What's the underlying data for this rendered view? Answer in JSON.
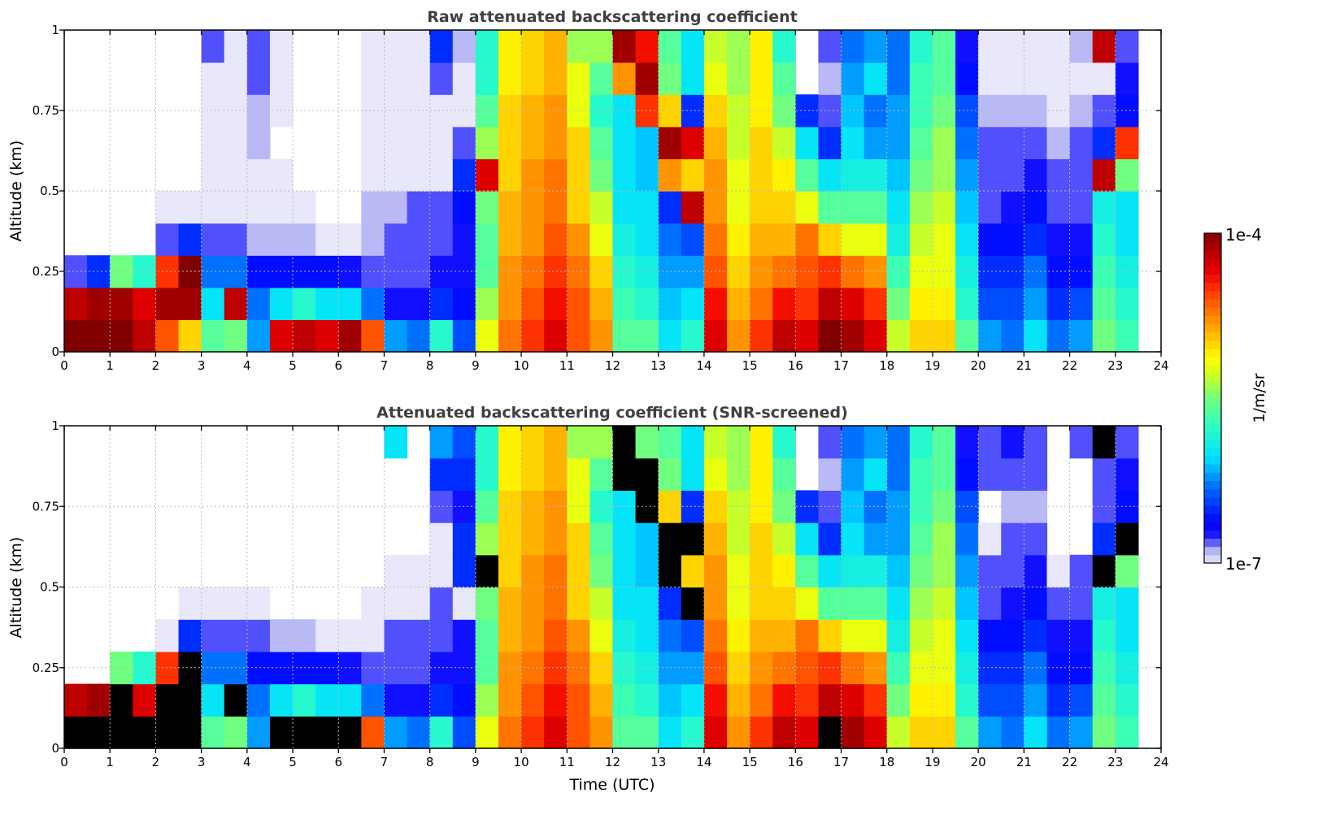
{
  "chart_data": [
    {
      "type": "heatmap",
      "title": "Raw attenuated backscattering coefficient",
      "xlabel": "Time (UTC)",
      "ylabel": "Altitude (km)",
      "xlim": [
        0,
        24
      ],
      "ylim": [
        0,
        1
      ],
      "x_ticks": [
        "0",
        "1",
        "2",
        "3",
        "4",
        "5",
        "6",
        "7",
        "8",
        "9",
        "10",
        "11",
        "12",
        "13",
        "14",
        "15",
        "16",
        "17",
        "18",
        "19",
        "20",
        "21",
        "22",
        "23",
        "24"
      ],
      "y_ticks": [
        "0",
        "0.25",
        "0.5",
        "0.75",
        "1"
      ],
      "grid": true,
      "time_bin_hours": 0.5,
      "altitude_bin_km": 0.1,
      "value_units": "log10(1/m/sr)",
      "values_by_time_then_altitude": [
        [
          -4,
          -4.2,
          -6.8,
          null,
          null,
          null,
          null,
          null,
          null,
          null
        ],
        [
          -4,
          -4.1,
          -6.5,
          null,
          null,
          null,
          null,
          null,
          null,
          null
        ],
        [
          -4,
          -4.1,
          -5.5,
          null,
          null,
          null,
          null,
          null,
          null,
          null
        ],
        [
          -4.2,
          -4.3,
          -5.8,
          null,
          null,
          null,
          null,
          null,
          null,
          null
        ],
        [
          -4.6,
          -4.1,
          -4.5,
          -6.8,
          -7,
          null,
          null,
          null,
          null,
          null
        ],
        [
          -5,
          -4.1,
          -4,
          -6.5,
          -7,
          null,
          null,
          null,
          null,
          null
        ],
        [
          -5.6,
          -6,
          -6.3,
          -6.8,
          -7,
          -7,
          -7,
          -7,
          -7,
          -6.8
        ],
        [
          -5.5,
          -4.2,
          -6.3,
          -6.8,
          -7,
          -7,
          -7,
          -7,
          -7,
          -7
        ],
        [
          -6.2,
          -6.3,
          -6.6,
          -6.9,
          -7,
          -7,
          -6.9,
          -6.9,
          -6.8,
          -6.8
        ],
        [
          -4.3,
          -6,
          -6.6,
          -6.9,
          -7,
          -7,
          null,
          -7,
          -7,
          -7
        ],
        [
          -4.2,
          -5.8,
          -6.6,
          -6.9,
          -7,
          null,
          null,
          null,
          null,
          null
        ],
        [
          -4.3,
          -6,
          -6.6,
          -7,
          null,
          null,
          null,
          null,
          null,
          null
        ],
        [
          -4.1,
          -6,
          -6.7,
          -7,
          null,
          null,
          null,
          null,
          null,
          null
        ],
        [
          -4.6,
          -6.3,
          -6.8,
          -6.9,
          -6.9,
          -7,
          -7,
          -7,
          -7,
          -7
        ],
        [
          -6.2,
          -6.7,
          -6.8,
          -6.8,
          -6.9,
          -7,
          -7,
          -7,
          -7,
          -7
        ],
        [
          -6.3,
          -6.7,
          -6.8,
          -6.8,
          -6.8,
          -7,
          -7,
          -7,
          -7,
          -7
        ],
        [
          -5.8,
          -6.5,
          -6.7,
          -6.8,
          -6.8,
          -7,
          -7,
          -7,
          -6.8,
          -6.5
        ],
        [
          -6.4,
          -6.6,
          -6.7,
          -6.7,
          -6.6,
          -6.5,
          -6.8,
          -7,
          -7,
          -6.9
        ],
        [
          -5.2,
          -5.4,
          -5.6,
          -5.6,
          -5.5,
          -4.3,
          -5.4,
          -5.6,
          -5.8,
          -5.8
        ],
        [
          -4.7,
          -4.8,
          -4.8,
          -4.9,
          -4.9,
          -5,
          -5,
          -5,
          -5.1,
          -5.1
        ],
        [
          -4.5,
          -4.6,
          -4.7,
          -4.8,
          -4.8,
          -4.8,
          -4.9,
          -4.9,
          -5,
          -5
        ],
        [
          -4.3,
          -4.4,
          -4.5,
          -4.6,
          -4.7,
          -4.7,
          -4.8,
          -4.8,
          -4.9,
          -4.9
        ],
        [
          -4.6,
          -4.6,
          -4.7,
          -4.8,
          -5,
          -5,
          -5,
          -5.2,
          -5.2,
          -5.4
        ],
        [
          -4.8,
          -4.9,
          -5,
          -5.2,
          -5.3,
          -5.5,
          -5.6,
          -5.8,
          -5.6,
          -5.4
        ],
        [
          -5.6,
          -5.7,
          -5.8,
          -5.9,
          -6,
          -6,
          -6,
          -6,
          -4.8,
          -4.1
        ],
        [
          -5.6,
          -5.8,
          -5.9,
          -6,
          -6,
          -6.1,
          -6.1,
          -4.5,
          -4.1,
          -4.4
        ],
        [
          -6,
          -6.1,
          -6.2,
          -6.3,
          -6.5,
          -4.8,
          -4.1,
          -5,
          -5.5,
          -5.6
        ],
        [
          -5.8,
          -6,
          -6.2,
          -6.4,
          -4.2,
          -5,
          -4.3,
          -6.5,
          -6,
          -6
        ],
        [
          -4.3,
          -4.4,
          -4.6,
          -4.7,
          -4.8,
          -4.8,
          -4.9,
          -5,
          -5.2,
          -5.3
        ],
        [
          -4.8,
          -4.9,
          -5,
          -5.1,
          -5.2,
          -5.2,
          -5.3,
          -5.3,
          -5.4,
          -5.4
        ],
        [
          -4.5,
          -4.7,
          -4.8,
          -4.9,
          -5,
          -5,
          -5,
          -5.1,
          -5.1,
          -5.1
        ],
        [
          -4.2,
          -4.4,
          -4.7,
          -4.9,
          -5,
          -5.1,
          -5.3,
          -5.5,
          -5.6,
          -5.8
        ],
        [
          -4.3,
          -4.5,
          -4.6,
          -4.7,
          -5.2,
          -5.6,
          -6,
          -6.5,
          null,
          null
        ],
        [
          -4,
          -4.2,
          -4.5,
          -5,
          -5.6,
          -6,
          -6.5,
          -6.8,
          -6.9,
          -6.8
        ],
        [
          -4.1,
          -4.3,
          -4.7,
          -5.2,
          -5.6,
          -5.9,
          -6,
          -6.1,
          -6.2,
          -6.3
        ],
        [
          -4.3,
          -4.5,
          -4.8,
          -5.2,
          -5.6,
          -5.9,
          -6.2,
          -6.3,
          -6,
          -6.2
        ],
        [
          -5.3,
          -5.5,
          -5.7,
          -5.9,
          -6,
          -6.1,
          -6.2,
          -6.2,
          -6.3,
          -6.3
        ],
        [
          -5,
          -5.1,
          -5.2,
          -5.3,
          -5.4,
          -5.5,
          -5.6,
          -5.7,
          -5.7,
          -5.8
        ],
        [
          -5,
          -5.1,
          -5.2,
          -5.2,
          -5.3,
          -5.4,
          -5.4,
          -5.5,
          -5.6,
          -5.6
        ],
        [
          -5.6,
          -5.8,
          -5.9,
          -6,
          -6.1,
          -6.2,
          -6.3,
          -6.4,
          -6.6,
          -6.7
        ],
        [
          -6.2,
          -6.4,
          -6.5,
          -6.6,
          -6.8,
          -6.8,
          -6.8,
          -6.9,
          -7,
          -7
        ],
        [
          -6.3,
          -6.4,
          -6.5,
          -6.6,
          -6.7,
          -6.8,
          -6.8,
          -6.9,
          -7,
          -7
        ],
        [
          -6,
          -6.2,
          -6.3,
          -6.5,
          -6.6,
          -6.7,
          -6.8,
          -6.9,
          -7,
          -7
        ],
        [
          -6.3,
          -6.5,
          -6.6,
          -6.7,
          -6.8,
          -6.8,
          -6.9,
          -7,
          -7,
          -7
        ],
        [
          -6.2,
          -6.4,
          -6.6,
          -6.7,
          -6.8,
          -6.8,
          -6.8,
          -6.9,
          -7,
          -6.9
        ],
        [
          -5.5,
          -5.6,
          -5.7,
          -5.8,
          -5.9,
          -4.2,
          -6.5,
          -6.8,
          -7,
          -4.2
        ],
        [
          -5.7,
          -5.8,
          -5.9,
          -6,
          -6,
          -5.5,
          -4.5,
          -6.6,
          -6.7,
          -6.8
        ],
        [
          null,
          null,
          null,
          null,
          null,
          null,
          null,
          null,
          null,
          null
        ]
      ]
    },
    {
      "type": "heatmap",
      "title": "Attenuated backscattering coefficient (SNR-screened)",
      "xlabel": "Time (UTC)",
      "ylabel": "Altitude (km)",
      "xlim": [
        0,
        24
      ],
      "ylim": [
        0,
        1
      ],
      "x_ticks": [
        "0",
        "1",
        "2",
        "3",
        "4",
        "5",
        "6",
        "7",
        "8",
        "9",
        "10",
        "11",
        "12",
        "13",
        "14",
        "15",
        "16",
        "17",
        "18",
        "19",
        "20",
        "21",
        "22",
        "23",
        "24"
      ],
      "y_ticks": [
        "0",
        "0.25",
        "0.5",
        "0.75",
        "1"
      ],
      "grid": true,
      "time_bin_hours": 0.5,
      "altitude_bin_km": 0.1,
      "value_units": "log10(1/m/sr); -3 = black (saturated)",
      "values_by_time_then_altitude": [
        [
          -3,
          -4.2,
          null,
          null,
          null,
          null,
          null,
          null,
          null,
          null
        ],
        [
          -3,
          -4.1,
          null,
          null,
          null,
          null,
          null,
          null,
          null,
          null
        ],
        [
          -3,
          -3,
          -5.5,
          null,
          null,
          null,
          null,
          null,
          null,
          null
        ],
        [
          -3,
          -4.3,
          -5.8,
          null,
          null,
          null,
          null,
          null,
          null,
          null
        ],
        [
          -3,
          -3,
          -4.5,
          -7,
          null,
          null,
          null,
          null,
          null,
          null
        ],
        [
          -3,
          -3,
          -3,
          -6.5,
          -7,
          null,
          null,
          null,
          null,
          null
        ],
        [
          -5.6,
          -6,
          -6.3,
          -6.8,
          -7,
          null,
          null,
          null,
          null,
          null
        ],
        [
          -5.5,
          -3,
          -6.3,
          -6.8,
          -7,
          null,
          null,
          null,
          null,
          null
        ],
        [
          -6.2,
          -6.3,
          -6.6,
          -6.8,
          -7,
          null,
          null,
          null,
          null,
          null
        ],
        [
          -3,
          -6,
          -6.6,
          -6.9,
          null,
          null,
          null,
          null,
          null,
          null
        ],
        [
          -3,
          -5.8,
          -6.6,
          -6.9,
          null,
          null,
          null,
          null,
          null,
          null
        ],
        [
          -3,
          -6,
          -6.6,
          -7,
          null,
          null,
          null,
          null,
          null,
          null
        ],
        [
          -3,
          -6,
          -6.7,
          -7,
          null,
          null,
          null,
          null,
          null,
          null
        ],
        [
          -4.6,
          -6.3,
          -6.8,
          -7,
          -7,
          null,
          null,
          null,
          null,
          null
        ],
        [
          -6.2,
          -6.7,
          -6.8,
          -6.8,
          -7,
          -7,
          null,
          null,
          null,
          -6
        ],
        [
          -6.3,
          -6.7,
          -6.8,
          -6.8,
          -7,
          -7,
          null,
          null,
          null,
          null
        ],
        [
          -5.8,
          -6.5,
          -6.7,
          -6.8,
          -6.8,
          -7,
          -7,
          -6.8,
          -6.5,
          -6.2
        ],
        [
          -6.4,
          -6.6,
          -6.7,
          -6.7,
          -7,
          -6.5,
          -6.5,
          -6.7,
          -6.5,
          -6.4
        ],
        [
          -5.2,
          -5.4,
          -5.6,
          -5.6,
          -5.5,
          -3,
          -5.4,
          -5.6,
          -5.8,
          -5.8
        ],
        [
          -4.7,
          -4.8,
          -4.8,
          -4.9,
          -4.9,
          -5,
          -5,
          -5,
          -5.1,
          -5.1
        ],
        [
          -4.5,
          -4.6,
          -4.7,
          -4.8,
          -4.8,
          -4.8,
          -4.9,
          -4.9,
          -5,
          -5
        ],
        [
          -4.3,
          -4.4,
          -4.5,
          -4.6,
          -4.7,
          -4.7,
          -4.8,
          -4.8,
          -4.9,
          -4.9
        ],
        [
          -4.6,
          -4.6,
          -4.7,
          -4.8,
          -5,
          -5,
          -5,
          -5.2,
          -5.2,
          -5.4
        ],
        [
          -4.8,
          -4.9,
          -5,
          -5.2,
          -5.3,
          -5.5,
          -5.6,
          -5.8,
          -5.6,
          -5.4
        ],
        [
          -5.6,
          -5.7,
          -5.8,
          -5.9,
          -6,
          -6,
          -6,
          -6,
          -3,
          -3
        ],
        [
          -5.6,
          -5.8,
          -5.9,
          -6,
          -6,
          -6.1,
          -6.1,
          -3,
          -3,
          -5.5
        ],
        [
          -6,
          -6.1,
          -6.2,
          -6.3,
          -6.5,
          -3,
          -3,
          -5,
          -5.5,
          -5.6
        ],
        [
          -5.8,
          -6,
          -6.2,
          -6.4,
          -3,
          -5,
          -3,
          -6.5,
          -6,
          -6
        ],
        [
          -4.3,
          -4.4,
          -4.6,
          -4.7,
          -4.8,
          -4.8,
          -4.9,
          -5,
          -5.2,
          -5.3
        ],
        [
          -4.8,
          -4.9,
          -5,
          -5.1,
          -5.2,
          -5.2,
          -5.3,
          -5.3,
          -5.4,
          -5.4
        ],
        [
          -4.5,
          -4.7,
          -4.8,
          -4.9,
          -5,
          -5,
          -5,
          -5.1,
          -5.1,
          -5.1
        ],
        [
          -4.2,
          -4.4,
          -4.7,
          -4.9,
          -5,
          -5.1,
          -5.3,
          -5.5,
          -5.6,
          -5.8
        ],
        [
          -4.3,
          -4.5,
          -4.6,
          -4.7,
          -5.2,
          -5.6,
          -6,
          -6.5,
          null,
          null
        ],
        [
          -3,
          -4.2,
          -4.5,
          -5,
          -5.6,
          -6,
          -6.5,
          -6.8,
          -6.9,
          -6.8
        ],
        [
          -4.1,
          -4.3,
          -4.7,
          -5.2,
          -5.6,
          -5.9,
          -6,
          -6.1,
          -6.2,
          -6.3
        ],
        [
          -4.3,
          -4.5,
          -4.8,
          -5.2,
          -5.6,
          -5.9,
          -6.2,
          -6.3,
          -6,
          -6.2
        ],
        [
          -5.3,
          -5.5,
          -5.7,
          -5.9,
          -6,
          -6.1,
          -6.2,
          -6.2,
          -6.3,
          -6.3
        ],
        [
          -5,
          -5.1,
          -5.2,
          -5.3,
          -5.4,
          -5.5,
          -5.6,
          -5.7,
          -5.7,
          -5.8
        ],
        [
          -5,
          -5.1,
          -5.2,
          -5.2,
          -5.3,
          -5.4,
          -5.4,
          -5.5,
          -5.6,
          -5.6
        ],
        [
          -5.6,
          -5.8,
          -5.9,
          -6,
          -6.1,
          -6.2,
          -6.3,
          -6.4,
          -6.6,
          -6.7
        ],
        [
          -6.2,
          -6.4,
          -6.5,
          -6.6,
          -6.8,
          -6.8,
          -7,
          null,
          -6.8,
          -6.8
        ],
        [
          -6.3,
          -6.4,
          -6.5,
          -6.6,
          -6.7,
          -6.8,
          -6.8,
          -6.9,
          -6.8,
          -6.7
        ],
        [
          -6,
          -6.2,
          -6.3,
          -6.5,
          -6.6,
          -6.7,
          -6.8,
          -6.9,
          -6.8,
          -6.8
        ],
        [
          -6.3,
          -6.5,
          -6.6,
          -6.7,
          -6.8,
          -7,
          null,
          null,
          null,
          null
        ],
        [
          -6.2,
          -6.4,
          -6.6,
          -6.7,
          -6.8,
          -6.8,
          null,
          null,
          null,
          -6.8
        ],
        [
          -5.5,
          -5.6,
          -5.7,
          -5.8,
          -5.9,
          -3,
          -6.5,
          -6.8,
          -6.8,
          -3
        ],
        [
          -5.7,
          -5.8,
          -5.9,
          -6,
          -6,
          -5.5,
          -3,
          -6.6,
          -6.7,
          -6.8
        ],
        [
          null,
          null,
          null,
          null,
          null,
          null,
          null,
          null,
          null,
          null
        ]
      ]
    }
  ],
  "colorbar": {
    "label": "1/m/sr",
    "max_label": "1e-4",
    "min_label": "1e-7",
    "range_log10": [
      -7,
      -4
    ],
    "saturated_color": "#000000",
    "stops": [
      [
        0.0,
        "#e8e8fa"
      ],
      [
        0.04,
        "#b0b0f5"
      ],
      [
        0.08,
        "#2020ff"
      ],
      [
        0.12,
        "#0000ff"
      ],
      [
        0.22,
        "#0060ff"
      ],
      [
        0.32,
        "#00e0ff"
      ],
      [
        0.42,
        "#30ffc0"
      ],
      [
        0.5,
        "#70ff80"
      ],
      [
        0.56,
        "#c0ff30"
      ],
      [
        0.62,
        "#ffff00"
      ],
      [
        0.72,
        "#ffa000"
      ],
      [
        0.82,
        "#ff4000"
      ],
      [
        0.88,
        "#f00000"
      ],
      [
        0.95,
        "#b00000"
      ],
      [
        1.0,
        "#800000"
      ]
    ]
  }
}
